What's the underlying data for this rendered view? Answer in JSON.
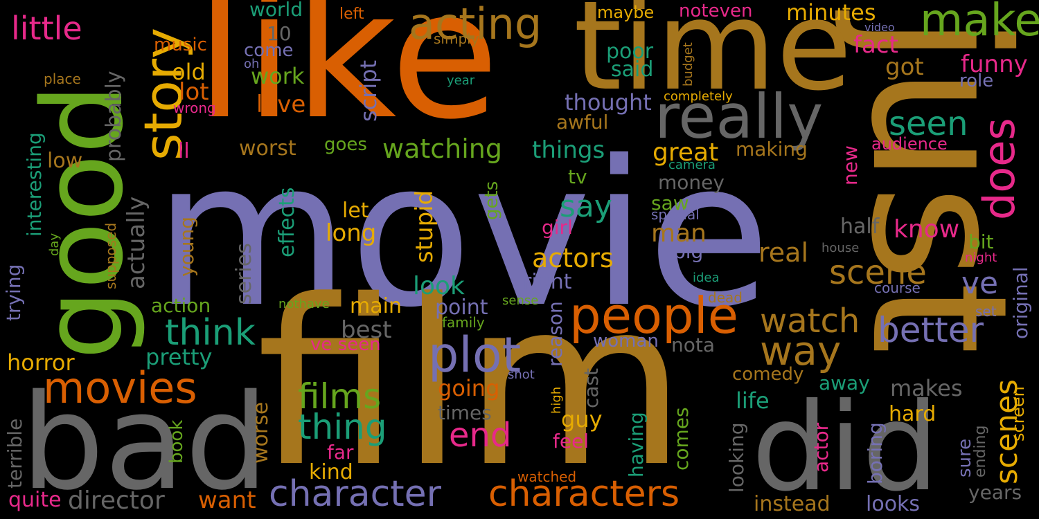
{
  "background": "#000000",
  "palette": {
    "purple": "#7570B3",
    "orange": "#D95F02",
    "gold": "#A6761D",
    "green": "#66A61E",
    "teal": "#1B9E77",
    "pink": "#E7298A",
    "yellow": "#E6AB02",
    "gray": "#666666"
  },
  "words": [
    {
      "text": "movie",
      "color": "purple"
    },
    {
      "text": "like",
      "color": "orange"
    },
    {
      "text": "film",
      "color": "gold"
    },
    {
      "text": "just",
      "color": "gold"
    },
    {
      "text": "time",
      "color": "gold"
    },
    {
      "text": "good",
      "color": "green"
    },
    {
      "text": "bad",
      "color": "gray"
    },
    {
      "text": "did",
      "color": "gray"
    },
    {
      "text": "really",
      "color": "gray"
    },
    {
      "text": "story",
      "color": "yellow"
    },
    {
      "text": "acting",
      "color": "gold"
    },
    {
      "text": "make",
      "color": "green"
    },
    {
      "text": "people",
      "color": "orange"
    },
    {
      "text": "does",
      "color": "pink"
    },
    {
      "text": "plot",
      "color": "purple"
    },
    {
      "text": "movies",
      "color": "orange"
    },
    {
      "text": "character",
      "color": "purple"
    },
    {
      "text": "characters",
      "color": "orange"
    },
    {
      "text": "think",
      "color": "teal"
    },
    {
      "text": "watch",
      "color": "gold"
    },
    {
      "text": "way",
      "color": "gold"
    },
    {
      "text": "better",
      "color": "purple"
    },
    {
      "text": "scene",
      "color": "gold"
    },
    {
      "text": "scenes",
      "color": "yellow"
    },
    {
      "text": "films",
      "color": "green"
    },
    {
      "text": "thing",
      "color": "teal"
    },
    {
      "text": "end",
      "color": "pink"
    },
    {
      "text": "little",
      "color": "pink"
    },
    {
      "text": "watching",
      "color": "green"
    },
    {
      "text": "things",
      "color": "teal"
    },
    {
      "text": "seen",
      "color": "teal"
    },
    {
      "text": "say",
      "color": "teal"
    },
    {
      "text": "ve",
      "color": "purple"
    },
    {
      "text": "great",
      "color": "yellow"
    },
    {
      "text": "actors",
      "color": "yellow"
    },
    {
      "text": "man",
      "color": "gold"
    },
    {
      "text": "real",
      "color": "gold"
    },
    {
      "text": "know",
      "color": "pink"
    },
    {
      "text": "funny",
      "color": "pink"
    },
    {
      "text": "fact",
      "color": "pink"
    },
    {
      "text": "got",
      "color": "gold"
    },
    {
      "text": "minutes",
      "color": "yellow"
    },
    {
      "text": "noteven",
      "color": "pink"
    },
    {
      "text": "maybe",
      "color": "yellow"
    },
    {
      "text": "world",
      "color": "teal"
    },
    {
      "text": "left",
      "color": "orange"
    },
    {
      "text": "music",
      "color": "orange"
    },
    {
      "text": "come",
      "color": "purple"
    },
    {
      "text": "old",
      "color": "yellow"
    },
    {
      "text": "work",
      "color": "green"
    },
    {
      "text": "lot",
      "color": "orange"
    },
    {
      "text": "love",
      "color": "orange"
    },
    {
      "text": "script",
      "color": "purple"
    },
    {
      "text": "10",
      "color": "gray"
    },
    {
      "text": "oh",
      "color": "purple"
    },
    {
      "text": "simply",
      "color": "gold"
    },
    {
      "text": "place",
      "color": "gold"
    },
    {
      "text": "year",
      "color": "teal"
    },
    {
      "text": "wrong",
      "color": "pink"
    },
    {
      "text": "poor",
      "color": "teal"
    },
    {
      "text": "said",
      "color": "teal"
    },
    {
      "text": "thought",
      "color": "purple"
    },
    {
      "text": "completely",
      "color": "yellow"
    },
    {
      "text": "budget",
      "color": "gold"
    },
    {
      "text": "video",
      "color": "purple"
    },
    {
      "text": "role",
      "color": "purple"
    },
    {
      "text": "awful",
      "color": "gold"
    },
    {
      "text": "worst",
      "color": "gold"
    },
    {
      "text": "goes",
      "color": "green"
    },
    {
      "text": "ll",
      "color": "pink"
    },
    {
      "text": "low",
      "color": "gold"
    },
    {
      "text": "making",
      "color": "gold"
    },
    {
      "text": "audience",
      "color": "pink"
    },
    {
      "text": "camera",
      "color": "teal"
    },
    {
      "text": "new",
      "color": "pink"
    },
    {
      "text": "probably",
      "color": "gray"
    },
    {
      "text": "actually",
      "color": "gray"
    },
    {
      "text": "interesting",
      "color": "teal"
    },
    {
      "text": "trying",
      "color": "purple"
    },
    {
      "text": "effects",
      "color": "teal"
    },
    {
      "text": "tv",
      "color": "green"
    },
    {
      "text": "money",
      "color": "gray"
    },
    {
      "text": "saw",
      "color": "green"
    },
    {
      "text": "special",
      "color": "purple"
    },
    {
      "text": "let",
      "color": "yellow"
    },
    {
      "text": "long",
      "color": "yellow"
    },
    {
      "text": "stupid",
      "color": "yellow"
    },
    {
      "text": "gets",
      "color": "green"
    },
    {
      "text": "girl",
      "color": "pink"
    },
    {
      "text": "half",
      "color": "gray"
    },
    {
      "text": "house",
      "color": "gray"
    },
    {
      "text": "big",
      "color": "purple"
    },
    {
      "text": "bit",
      "color": "green"
    },
    {
      "text": "night",
      "color": "pink"
    },
    {
      "text": "original",
      "color": "purple"
    },
    {
      "text": "day",
      "color": "green"
    },
    {
      "text": "supposed",
      "color": "gold"
    },
    {
      "text": "young",
      "color": "gold"
    },
    {
      "text": "series",
      "color": "gray"
    },
    {
      "text": "look",
      "color": "teal"
    },
    {
      "text": "right",
      "color": "purple"
    },
    {
      "text": "idea",
      "color": "teal"
    },
    {
      "text": "dead",
      "color": "gold"
    },
    {
      "text": "course",
      "color": "purple"
    },
    {
      "text": "action",
      "color": "green"
    },
    {
      "text": "nothave",
      "color": "green"
    },
    {
      "text": "sense",
      "color": "green"
    },
    {
      "text": "main",
      "color": "yellow"
    },
    {
      "text": "point",
      "color": "purple"
    },
    {
      "text": "family",
      "color": "green"
    },
    {
      "text": "reason",
      "color": "purple"
    },
    {
      "text": "set",
      "color": "purple"
    },
    {
      "text": "best",
      "color": "gray"
    },
    {
      "text": "woman",
      "color": "purple"
    },
    {
      "text": "nota",
      "color": "gray"
    },
    {
      "text": "ve seen",
      "color": "pink"
    },
    {
      "text": "horror",
      "color": "yellow"
    },
    {
      "text": "pretty",
      "color": "teal"
    },
    {
      "text": "cast",
      "color": "gray"
    },
    {
      "text": "comedy",
      "color": "gold"
    },
    {
      "text": "away",
      "color": "teal"
    },
    {
      "text": "screen",
      "color": "yellow"
    },
    {
      "text": "going",
      "color": "orange"
    },
    {
      "text": "shot",
      "color": "purple"
    },
    {
      "text": "high",
      "color": "yellow"
    },
    {
      "text": "makes",
      "color": "gray"
    },
    {
      "text": "guy",
      "color": "yellow"
    },
    {
      "text": "life",
      "color": "teal"
    },
    {
      "text": "times",
      "color": "gray"
    },
    {
      "text": "book",
      "color": "green"
    },
    {
      "text": "worse",
      "color": "gold"
    },
    {
      "text": "comes",
      "color": "green"
    },
    {
      "text": "having",
      "color": "teal"
    },
    {
      "text": "hard",
      "color": "yellow"
    },
    {
      "text": "sure",
      "color": "purple"
    },
    {
      "text": "ending",
      "color": "gray"
    },
    {
      "text": "terrible",
      "color": "gray"
    },
    {
      "text": "far",
      "color": "pink"
    },
    {
      "text": "feel",
      "color": "pink"
    },
    {
      "text": "actor",
      "color": "pink"
    },
    {
      "text": "boring",
      "color": "purple"
    },
    {
      "text": "kind",
      "color": "yellow"
    },
    {
      "text": "looking",
      "color": "gray"
    },
    {
      "text": "watched",
      "color": "orange"
    },
    {
      "text": "years",
      "color": "gray"
    },
    {
      "text": "quite",
      "color": "pink"
    },
    {
      "text": "director",
      "color": "gray"
    },
    {
      "text": "want",
      "color": "orange"
    },
    {
      "text": "instead",
      "color": "gold"
    },
    {
      "text": "looks",
      "color": "purple"
    }
  ]
}
